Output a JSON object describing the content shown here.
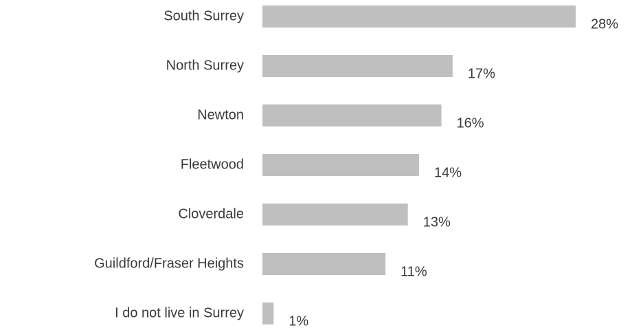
{
  "chart_data": {
    "type": "barh",
    "categories": [
      "South Surrey",
      "North Surrey",
      "Newton",
      "Fleetwood",
      "Cloverdale",
      "Guildford/Fraser Heights",
      "I do not live in Surrey"
    ],
    "values": [
      28,
      17,
      16,
      14,
      13,
      11,
      1
    ],
    "value_labels": [
      "28%",
      "17%",
      "16%",
      "14%",
      "13%",
      "11%",
      "1%"
    ],
    "color": "#bfbfbf"
  }
}
